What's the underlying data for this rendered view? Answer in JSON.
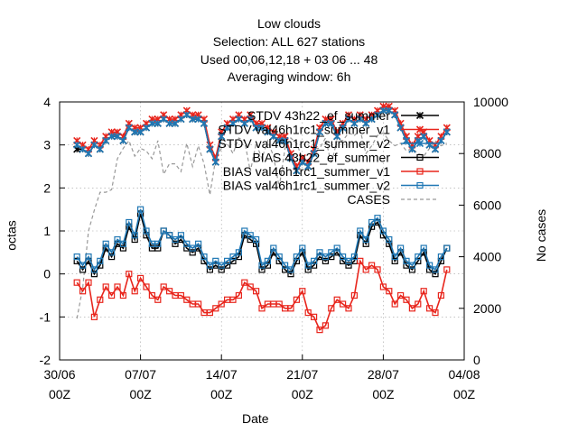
{
  "chart_data": {
    "type": "line",
    "title_lines": [
      "Low clouds",
      "Selection: ALL     627 stations",
      "Used  00,06,12,18  + 03 06 ... 48",
      "Averaging window:  6h"
    ],
    "xlabel": "Date",
    "ylabel": "octas",
    "y2label": "No cases",
    "ylim": [
      -2,
      4
    ],
    "y2lim": [
      0,
      10000
    ],
    "xlim_days": [
      0,
      35
    ],
    "x_ticks": [
      {
        "day": 0,
        "label1": "30/06",
        "label2": "00Z"
      },
      {
        "day": 7,
        "label1": "07/07",
        "label2": "00Z"
      },
      {
        "day": 14,
        "label1": "14/07",
        "label2": "00Z"
      },
      {
        "day": 21,
        "label1": "21/07",
        "label2": "00Z"
      },
      {
        "day": 28,
        "label1": "28/07",
        "label2": "00Z"
      },
      {
        "day": 35,
        "label1": "04/08",
        "label2": "00Z"
      }
    ],
    "y_ticks": [
      "-2",
      "-1",
      "0",
      "1",
      "2",
      "3",
      "4"
    ],
    "y2_ticks": [
      "0",
      "2000",
      "4000",
      "6000",
      "8000",
      "10000"
    ],
    "grid": true,
    "legend_position": "top-right",
    "series": [
      {
        "name": "STDV 43h22_ef_summer",
        "color": "#000000",
        "marker": "x",
        "axis": "y",
        "x": [
          1.5,
          2,
          2.5,
          3,
          3.5,
          4,
          4.5,
          5,
          5.5,
          6,
          6.5,
          7,
          7.5,
          8,
          8.5,
          9,
          9.5,
          10,
          10.5,
          11,
          11.5,
          12,
          12.5,
          13,
          13.5,
          14,
          14.5,
          15,
          15.5,
          16,
          16.5,
          17,
          17.5,
          18,
          18.5,
          19,
          19.5,
          20,
          20.5,
          21,
          21.5,
          22,
          22.5,
          23,
          23.5,
          24,
          24.5,
          25,
          25.5,
          26,
          26.5,
          27,
          27.5,
          28,
          28.5,
          29,
          29.5,
          30,
          30.5,
          31,
          31.5,
          32,
          32.5,
          33,
          33.5
        ],
        "values": [
          2.9,
          2.9,
          2.8,
          3.0,
          2.9,
          3.1,
          3.2,
          3.2,
          3.1,
          3.4,
          3.3,
          3.3,
          3.4,
          3.5,
          3.5,
          3.6,
          3.5,
          3.5,
          3.6,
          3.7,
          3.6,
          3.6,
          3.5,
          2.9,
          2.6,
          3.2,
          3.4,
          3.5,
          3.6,
          3.5,
          3.6,
          3.4,
          3.4,
          3.3,
          3.2,
          3.1,
          3.1,
          2.7,
          2.4,
          2.6,
          2.5,
          2.8,
          3.3,
          3.5,
          3.5,
          3.2,
          3.4,
          3.6,
          3.5,
          3.6,
          3.5,
          3.6,
          3.7,
          3.8,
          3.8,
          3.7,
          3.4,
          3.1,
          2.9,
          3.1,
          3.2,
          3.0,
          2.9,
          3.1,
          3.3
        ]
      },
      {
        "name": "STDV val46h1rc1_summer_v1",
        "color": "#e8251c",
        "marker": "x",
        "axis": "y",
        "x": [
          1.5,
          2,
          2.5,
          3,
          3.5,
          4,
          4.5,
          5,
          5.5,
          6,
          6.5,
          7,
          7.5,
          8,
          8.5,
          9,
          9.5,
          10,
          10.5,
          11,
          11.5,
          12,
          12.5,
          13,
          13.5,
          14,
          14.5,
          15,
          15.5,
          16,
          16.5,
          17,
          17.5,
          18,
          18.5,
          19,
          19.5,
          20,
          20.5,
          21,
          21.5,
          22,
          22.5,
          23,
          23.5,
          24,
          24.5,
          25,
          25.5,
          26,
          26.5,
          27,
          27.5,
          28,
          28.5,
          29,
          29.5,
          30,
          30.5,
          31,
          31.5,
          32,
          32.5,
          33,
          33.5
        ],
        "values": [
          3.1,
          3.0,
          2.9,
          3.1,
          3.0,
          3.2,
          3.3,
          3.3,
          3.2,
          3.5,
          3.4,
          3.4,
          3.5,
          3.6,
          3.6,
          3.7,
          3.6,
          3.6,
          3.7,
          3.8,
          3.7,
          3.7,
          3.6,
          3.0,
          2.7,
          3.3,
          3.5,
          3.6,
          3.7,
          3.6,
          3.7,
          3.5,
          3.5,
          3.4,
          3.3,
          3.2,
          3.2,
          2.8,
          2.5,
          2.7,
          2.6,
          2.9,
          3.4,
          3.6,
          3.6,
          3.3,
          3.5,
          3.7,
          3.6,
          3.7,
          3.6,
          3.7,
          3.8,
          3.9,
          3.9,
          3.8,
          3.5,
          3.2,
          3.0,
          3.2,
          3.3,
          3.1,
          3.0,
          3.2,
          3.4
        ]
      },
      {
        "name": "STDV val46h1rc1_summer_v2",
        "color": "#1f77b4",
        "marker": "x",
        "axis": "y",
        "x": [
          1.5,
          2,
          2.5,
          3,
          3.5,
          4,
          4.5,
          5,
          5.5,
          6,
          6.5,
          7,
          7.5,
          8,
          8.5,
          9,
          9.5,
          10,
          10.5,
          11,
          11.5,
          12,
          12.5,
          13,
          13.5,
          14,
          14.5,
          15,
          15.5,
          16,
          16.5,
          17,
          17.5,
          18,
          18.5,
          19,
          19.5,
          20,
          20.5,
          21,
          21.5,
          22,
          22.5,
          23,
          23.5,
          24,
          24.5,
          25,
          25.5,
          26,
          26.5,
          27,
          27.5,
          28,
          28.5,
          29,
          29.5,
          30,
          30.5,
          31,
          31.5,
          32,
          32.5,
          33,
          33.5
        ],
        "values": [
          3.0,
          2.9,
          2.8,
          3.0,
          2.9,
          3.1,
          3.2,
          3.2,
          3.1,
          3.4,
          3.3,
          3.3,
          3.4,
          3.5,
          3.5,
          3.6,
          3.5,
          3.5,
          3.6,
          3.7,
          3.6,
          3.6,
          3.5,
          2.9,
          2.6,
          3.2,
          3.4,
          3.5,
          3.6,
          3.5,
          3.6,
          3.4,
          3.4,
          3.3,
          3.2,
          3.1,
          3.1,
          2.7,
          2.4,
          2.6,
          2.5,
          2.8,
          3.3,
          3.5,
          3.5,
          3.2,
          3.4,
          3.6,
          3.5,
          3.6,
          3.5,
          3.6,
          3.7,
          3.8,
          3.8,
          3.7,
          3.4,
          3.1,
          2.9,
          3.1,
          3.2,
          3.0,
          2.9,
          3.1,
          3.3
        ]
      },
      {
        "name": "BIAS 43h22_ef_summer",
        "color": "#000000",
        "marker": "square",
        "axis": "y",
        "x": [
          1.5,
          2,
          2.5,
          3,
          3.5,
          4,
          4.5,
          5,
          5.5,
          6,
          6.5,
          7,
          7.5,
          8,
          8.5,
          9,
          9.5,
          10,
          10.5,
          11,
          11.5,
          12,
          12.5,
          13,
          13.5,
          14,
          14.5,
          15,
          15.5,
          16,
          16.5,
          17,
          17.5,
          18,
          18.5,
          19,
          19.5,
          20,
          20.5,
          21,
          21.5,
          22,
          22.5,
          23,
          23.5,
          24,
          24.5,
          25,
          25.5,
          26,
          26.5,
          27,
          27.5,
          28,
          28.5,
          29,
          29.5,
          30,
          30.5,
          31,
          31.5,
          32,
          32.5,
          33,
          33.5
        ],
        "values": [
          0.3,
          0.1,
          0.3,
          0.0,
          0.2,
          0.6,
          0.4,
          0.7,
          0.6,
          1.1,
          0.8,
          1.4,
          0.9,
          0.6,
          0.6,
          1.0,
          0.9,
          0.7,
          0.8,
          0.6,
          0.5,
          0.6,
          0.3,
          0.1,
          0.2,
          0.1,
          0.2,
          0.3,
          0.4,
          0.9,
          0.8,
          0.7,
          0.1,
          0.2,
          0.5,
          0.3,
          0.1,
          0.0,
          0.3,
          0.5,
          0.1,
          0.2,
          0.4,
          0.3,
          0.4,
          0.5,
          0.3,
          0.2,
          0.3,
          0.9,
          0.7,
          1.1,
          1.2,
          0.9,
          0.7,
          0.3,
          0.5,
          0.2,
          0.1,
          0.3,
          0.5,
          0.1,
          0.0,
          0.3,
          0.6
        ]
      },
      {
        "name": "BIAS val46h1rc1_summer_v1",
        "color": "#e8251c",
        "marker": "square",
        "axis": "y",
        "x": [
          1.5,
          2,
          2.5,
          3,
          3.5,
          4,
          4.5,
          5,
          5.5,
          6,
          6.5,
          7,
          7.5,
          8,
          8.5,
          9,
          9.5,
          10,
          10.5,
          11,
          11.5,
          12,
          12.5,
          13,
          13.5,
          14,
          14.5,
          15,
          15.5,
          16,
          16.5,
          17,
          17.5,
          18,
          18.5,
          19,
          19.5,
          20,
          20.5,
          21,
          21.5,
          22,
          22.5,
          23,
          23.5,
          24,
          24.5,
          25,
          25.5,
          26,
          26.5,
          27,
          27.5,
          28,
          28.5,
          29,
          29.5,
          30,
          30.5,
          31,
          31.5,
          32,
          32.5,
          33,
          33.5
        ],
        "values": [
          -0.2,
          -0.4,
          -0.2,
          -1.0,
          -0.6,
          -0.3,
          -0.5,
          -0.3,
          -0.5,
          0.0,
          -0.4,
          -0.1,
          -0.3,
          -0.5,
          -0.6,
          -0.3,
          -0.4,
          -0.5,
          -0.5,
          -0.6,
          -0.7,
          -0.7,
          -0.9,
          -0.9,
          -0.8,
          -0.7,
          -0.6,
          -0.6,
          -0.5,
          -0.2,
          -0.3,
          -0.4,
          -0.8,
          -0.7,
          -0.7,
          -0.7,
          -0.8,
          -0.8,
          -0.6,
          -0.4,
          -0.9,
          -1.0,
          -1.3,
          -1.2,
          -0.8,
          -0.6,
          -0.7,
          -0.8,
          -0.5,
          0.3,
          0.1,
          0.2,
          0.1,
          -0.3,
          -0.4,
          -0.7,
          -0.5,
          -0.6,
          -0.8,
          -0.7,
          -0.4,
          -0.8,
          -0.9,
          -0.5,
          0.1
        ]
      },
      {
        "name": "BIAS val46h1rc1_summer_v2",
        "color": "#1f77b4",
        "marker": "square",
        "axis": "y",
        "x": [
          1.5,
          2,
          2.5,
          3,
          3.5,
          4,
          4.5,
          5,
          5.5,
          6,
          6.5,
          7,
          7.5,
          8,
          8.5,
          9,
          9.5,
          10,
          10.5,
          11,
          11.5,
          12,
          12.5,
          13,
          13.5,
          14,
          14.5,
          15,
          15.5,
          16,
          16.5,
          17,
          17.5,
          18,
          18.5,
          19,
          19.5,
          20,
          20.5,
          21,
          21.5,
          22,
          22.5,
          23,
          23.5,
          24,
          24.5,
          25,
          25.5,
          26,
          26.5,
          27,
          27.5,
          28,
          28.5,
          29,
          29.5,
          30,
          30.5,
          31,
          31.5,
          32,
          32.5,
          33,
          33.5
        ],
        "values": [
          0.4,
          0.2,
          0.4,
          0.1,
          0.3,
          0.7,
          0.5,
          0.8,
          0.7,
          1.2,
          0.9,
          1.5,
          1.0,
          0.7,
          0.7,
          1.0,
          0.9,
          0.8,
          0.9,
          0.7,
          0.6,
          0.7,
          0.4,
          0.2,
          0.3,
          0.2,
          0.3,
          0.4,
          0.5,
          1.0,
          0.9,
          0.8,
          0.2,
          0.3,
          0.6,
          0.4,
          0.2,
          0.1,
          0.4,
          0.6,
          0.2,
          0.3,
          0.5,
          0.4,
          0.5,
          0.6,
          0.4,
          0.3,
          0.4,
          1.0,
          0.8,
          1.2,
          1.3,
          1.0,
          0.8,
          0.4,
          0.6,
          0.3,
          0.2,
          0.4,
          0.6,
          0.2,
          0.1,
          0.4,
          0.6
        ]
      },
      {
        "name": "CASES",
        "color": "#999999",
        "marker": "none",
        "dashed": true,
        "axis": "y2",
        "x": [
          1.5,
          2,
          2.5,
          3,
          3.5,
          4,
          4.5,
          5,
          5.5,
          6,
          6.5,
          7,
          7.5,
          8,
          8.5,
          9,
          9.5,
          10,
          10.5,
          11,
          11.5,
          12,
          12.5,
          13,
          13.5,
          14,
          14.5,
          15,
          15.5,
          16,
          16.5,
          17,
          17.5,
          18,
          18.5,
          19,
          19.5,
          20,
          20.5,
          21,
          21.5,
          22,
          22.5,
          23,
          23.5,
          24,
          24.5,
          25,
          25.5,
          26,
          26.5,
          27,
          27.5,
          28,
          28.5,
          29,
          29.5,
          30,
          30.5,
          31,
          31.5,
          32,
          32.5,
          33,
          33.5
        ],
        "values": [
          1600,
          2800,
          5000,
          5800,
          6500,
          6500,
          6600,
          7800,
          8200,
          8500,
          7900,
          8200,
          8100,
          7800,
          8500,
          7200,
          7600,
          7600,
          7300,
          8400,
          7500,
          8300,
          7600,
          6400,
          7800,
          8200,
          8400,
          8000,
          8600,
          8500,
          7300,
          8400,
          7800,
          8500,
          7900,
          6700,
          8200,
          8600,
          8400,
          7800,
          7600,
          8200,
          8200,
          8600,
          7600,
          8500,
          8500,
          8800,
          8700,
          8900,
          8000,
          8300,
          8700,
          8800,
          8500,
          8300,
          8400,
          8100,
          8200,
          8000,
          7900,
          8200,
          8500,
          8300,
          8400
        ]
      }
    ]
  }
}
